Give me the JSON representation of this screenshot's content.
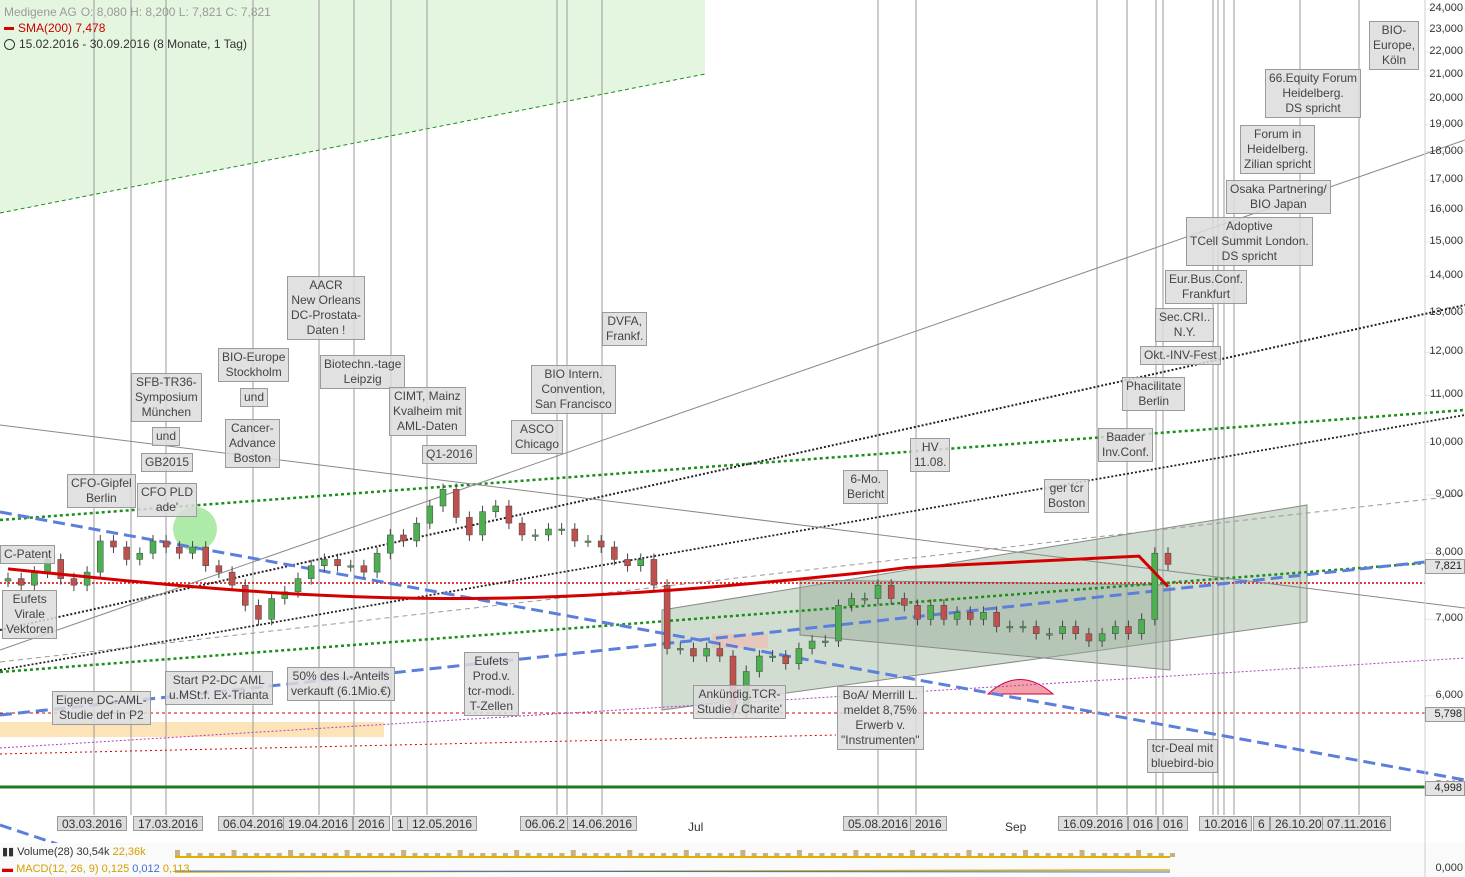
{
  "header": {
    "symbol": "Medigene AG",
    "ohlc": "O: 8,080  H: 8,200  L: 7,821  C: 7,821",
    "sma": "SMA(200)  7,478",
    "range": "15.02.2016 - 30.09.2016 (8 Monate, 1 Tag)"
  },
  "indicators": {
    "volume_label": "Volume(28)",
    "volume_val1": "30,54k",
    "volume_val2": "22,36k",
    "macd_label": "MACD(12, 26, 9)",
    "macd_val1": "0,125",
    "macd_val2": "0,012",
    "macd_val3": "0,113"
  },
  "colors": {
    "up": "#4caf50",
    "down": "#c0504d",
    "sma": "#d40000",
    "dashed_blue": "#5b7fdb",
    "green_dotted": "#1a8f1a",
    "support_green": "#1f7a1f"
  },
  "chart_data": {
    "type": "candlestick",
    "title": "Medigene AG",
    "y_axis": {
      "ticks": [
        "24,000",
        "23,000",
        "22,000",
        "21,000",
        "20,000",
        "19,000",
        "18,000",
        "17,000",
        "16,000",
        "15,000",
        "14,000",
        "13,000",
        "12,000",
        "11,000",
        "10,000",
        "9,000",
        "8,000",
        "7,000",
        "6,000",
        "5,000"
      ],
      "price_flags": [
        "7,821",
        "5,798",
        "4,998"
      ],
      "scale": "log"
    },
    "x_axis": {
      "date_labels": [
        "03.03.2016",
        "17.03.2016",
        "06.04.2016",
        "19.04.2016",
        "2016",
        "1",
        "12.05.2016",
        "06.06.2",
        "14.06.2016",
        "05.08.2016",
        "2016",
        "16.09.2016",
        "016",
        "016",
        "10.2016",
        "6",
        "26.10.201",
        "07.11.2016"
      ],
      "month_labels": [
        "Jul",
        "Sep"
      ]
    },
    "close_prices": [
      7.6,
      7.5,
      7.7,
      7.9,
      7.6,
      7.5,
      7.7,
      8.2,
      8.1,
      7.9,
      8.0,
      8.2,
      8.1,
      8.0,
      8.1,
      7.8,
      7.7,
      7.5,
      7.2,
      7.0,
      7.3,
      7.4,
      7.6,
      7.8,
      7.9,
      7.8,
      7.8,
      7.7,
      8.0,
      8.3,
      8.2,
      8.5,
      8.8,
      9.1,
      8.6,
      8.3,
      8.7,
      8.8,
      8.5,
      8.3,
      8.3,
      8.4,
      8.4,
      8.2,
      8.2,
      8.1,
      7.9,
      7.8,
      7.9,
      7.5,
      6.6,
      6.6,
      6.5,
      6.6,
      6.5,
      5.8,
      6.3,
      6.5,
      6.5,
      6.4,
      6.6,
      6.7,
      6.7,
      7.2,
      7.3,
      7.3,
      7.5,
      7.3,
      7.2,
      7.0,
      7.2,
      7.0,
      7.1,
      7.0,
      7.1,
      6.9,
      6.9,
      6.9,
      6.8,
      6.8,
      6.9,
      6.8,
      6.7,
      6.8,
      6.9,
      6.8,
      7.0,
      8.0,
      7.821
    ],
    "sma200": {
      "label": "SMA(200)",
      "last": 7.478
    },
    "annotations": [
      "AACR\nNew Orleans\nDC-Prostata-\nDaten !",
      "BIO-Europe\nStockholm",
      "und",
      "Cancer-\nAdvance\nBoston",
      "SFB-TR36-\nSymposium\nMünchen",
      "und",
      "GB2015",
      "Biotechn.-tage\nLeipzig",
      "CIMT, Mainz\nKvalheim mit\nAML-Daten",
      "Q1-2016",
      "BIO Intern.\nConvention,\nSan Francisco",
      "ASCO\nChicago",
      "DVFA,\nFrankf.",
      "CFO-Gipfel\nBerlin",
      "CFO PLD\nade'",
      "C-Patent",
      "Eufets\nVirale\nVektoren",
      "Eigene DC-AML-\nStudie def in P2",
      "Start P2-DC AML\nu.MSt.f. Ex-Trianta",
      "50% des I.-Anteils\nverkauft (6.1Mio.€)",
      "Eufets\nProd.v.\ntcr-modi.\nT-Zellen",
      "Ankündig.TCR-\nStudie / Charite'",
      "BoA/ Merrill L.\nmeldet 8,75%\nErwerb v.\n\"Instrumenten\"",
      "6-Mo.\nBericht",
      "HV\n11.08.",
      "ger tcr\nBoston",
      "Baader\nInv.Conf.",
      "Phacilitate\nBerlin",
      "Okt.-INV-Fest",
      "Sec.CRI..\nN.Y.",
      "Eur.Bus.Conf.\nFrankfurt",
      "Adoptive\nTCell Summit London.\nDS spricht",
      "Osaka Partnering/\nBIO Japan",
      "Forum in\nHeidelberg.\nZilian spricht",
      "66.Equity Forum\nHeidelberg.\nDS spricht",
      "BIO-\nEurope,\nKöln",
      "tcr-Deal mit\nbluebird-bio"
    ]
  }
}
